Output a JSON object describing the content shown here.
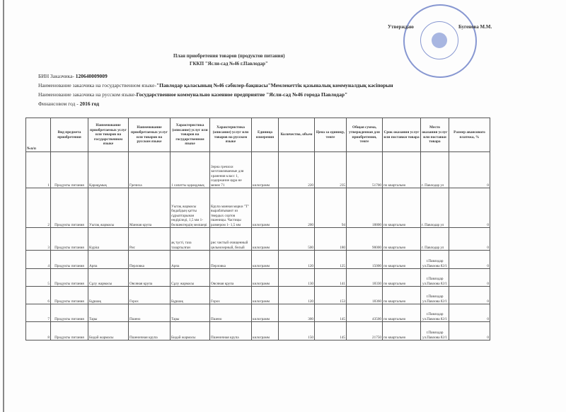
{
  "approval": {
    "label": "Утверждаю",
    "name": "Бугенова М.М."
  },
  "title": {
    "line1": "План приобретения товаров (продуктов питания)",
    "line2": "ГККП \"Ясли-сад №46 г.Павлодар\""
  },
  "info": {
    "bin_label": "БИН Заказчика- ",
    "bin": "120640009009",
    "state_label": "Наименование заказчика на государственном языке-",
    "state_name": "\"Павлодар қаласының №46 сәбилер-бақшасы\"Мемлекеттік қазыналық коммуналдық кәсіпорын",
    "ru_label": "Наименование заказчика на русском языке-",
    "ru_name": "Государственное коммунально казенное предприятие \"Ясли-сад №46 города Павлодар\"",
    "year_label": "Финансовом  год - ",
    "year": "2016 год"
  },
  "table": {
    "headers": [
      "№п/п",
      "Вид предмета приобретения",
      "Наименование приобретаемых услуг или товаров на государственном языке",
      "Наименование приобретаемых услуг или товаров на русском языке",
      "Характеристика (описание) услуг или товаров на государственном языке",
      "Характеристика (описание) услуг или товаров на русском языке",
      "Единица измерения",
      "Количество, объем",
      "Цена за единицу, тенге",
      "Общая сумма, утвержденная для приобретения, тенге",
      "Срок оказания услуг или поставки товара",
      "Место оказания услуг или поставки товара",
      "Размер авансового платежа, %"
    ],
    "rows": [
      [
        "1",
        "Продукты питания",
        "Қарақұмық",
        "Гречиха",
        "1 сапатты қарақұмық",
        "Зерна гречихи заготавливаемые для хранения класс 1, содержание ядра не менее 71",
        "килограмм",
        "220",
        "235",
        "51700",
        "по квартально",
        "г. Павлодар ул",
        "0"
      ],
      [
        "2",
        "Продукты питания",
        "Уытақ жармасы",
        "Манная крупа",
        "Уытақ жармасы бидайдың қатты сұрыптарынан өндіріледі, 1,5 мм 1-бөлшектердің мөлшері",
        "Крупа манная марки \"Т\" вырабатывают из твердых сортов пшеницы. Частицы размером 1- 1,5 мм",
        "килограмм",
        "200",
        "94",
        "18800",
        "по квартально",
        "г. Павлодар ул",
        "0"
      ],
      [
        "3",
        "Продукты питания",
        "Күріш",
        "Рис",
        "ақ түсті, таза тазартылған",
        "рис  чистый очищенный цельнозерный, белый",
        "килограмм",
        "500",
        "180",
        "90000",
        "по квартально",
        "г. Павлодар ул",
        "0"
      ],
      [
        "4",
        "Продукты питания",
        "Арпа",
        "Перловка",
        "Арпа",
        "Перловка",
        "килограмм",
        "120",
        "125",
        "15000",
        "по квартально",
        "г.Павлодар ул.Павлова 82/1",
        "0"
      ],
      [
        "5",
        "Продукты питания",
        "Сұлу жармасы",
        "Овсяная крупа",
        "Сұлу жармасы",
        "Овсяная крупа",
        "килограмм",
        "130",
        "141",
        "18330",
        "по квартально",
        "г.Павлодар ул.Павлова 82/1",
        "0"
      ],
      [
        "6",
        "Продукты питания",
        "Бұршақ",
        "Горох",
        "Бұршақ",
        "Горох",
        "килограмм",
        "120",
        "153",
        "18360",
        "по квартально",
        "г.Павлодар ул.Павлова 82/1",
        "0"
      ],
      [
        "7",
        "Продукты питания",
        "Тары",
        "Пшено",
        "Тары",
        "Пшено",
        "килограмм",
        "300",
        "145",
        "43500",
        "по квартально",
        "г.Павлодар ул.Павлова 82/1",
        "0"
      ],
      [
        "8",
        "Продукты питания",
        "Бидай жармасы",
        "Пшеничная крупа",
        "Бидай жармасы",
        "Пшеничная крупа",
        "килограмм",
        "150",
        "145",
        "21750",
        "по квартально",
        "г.Павлодар ул.Павлова 82/1",
        "0"
      ]
    ]
  },
  "colors": {
    "seal": "#3a55b5"
  }
}
